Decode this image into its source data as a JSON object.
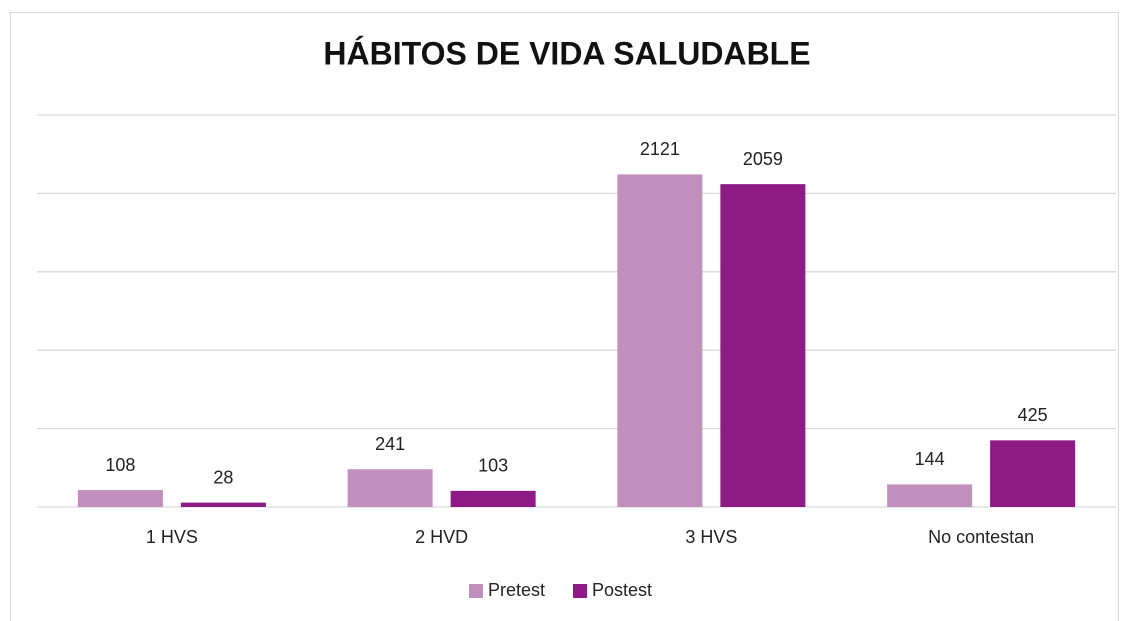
{
  "chart_data": {
    "type": "bar",
    "title": "HÁBITOS DE VIDA SALUDABLE",
    "categories": [
      "1 HVS",
      "2 HVD",
      "3 HVS",
      "No contestan"
    ],
    "series": [
      {
        "name": "Pretest",
        "color": "#c08fbd",
        "values": [
          108,
          241,
          2121,
          144
        ]
      },
      {
        "name": "Postest",
        "color": "#8e1a85",
        "values": [
          28,
          103,
          2059,
          425
        ]
      }
    ],
    "ylim": [
      0,
      2500
    ],
    "yticks": [
      0,
      500,
      1000,
      1500,
      2000,
      2500
    ],
    "grid": true,
    "legend": "bottom"
  }
}
